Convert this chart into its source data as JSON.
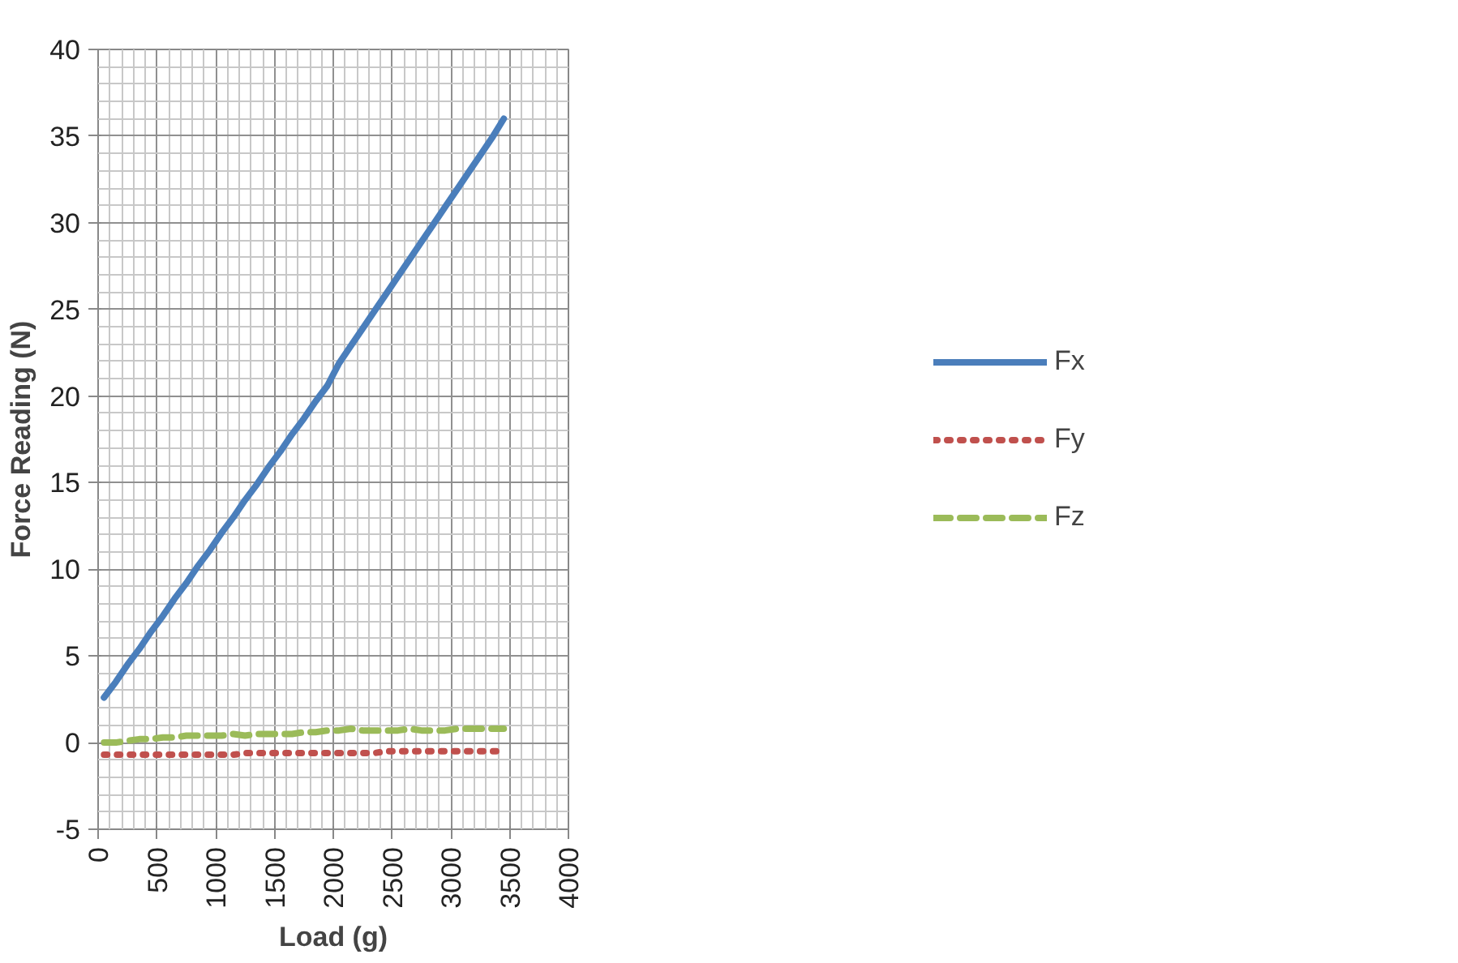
{
  "chart_data": {
    "type": "line",
    "xlabel": "Load (g)",
    "ylabel": "Force Reading (N)",
    "x": [
      50,
      150,
      250,
      350,
      450,
      550,
      650,
      750,
      850,
      950,
      1050,
      1150,
      1250,
      1350,
      1450,
      1550,
      1650,
      1750,
      1850,
      1950,
      2050,
      2150,
      2250,
      2350,
      2450,
      2550,
      2650,
      2750,
      2850,
      2950,
      3050,
      3150,
      3250,
      3350,
      3450
    ],
    "series": [
      {
        "name": "Fx",
        "color": "#4a7ebb",
        "line_style": "solid",
        "values": [
          2.6,
          3.5,
          4.5,
          5.4,
          6.4,
          7.3,
          8.3,
          9.2,
          10.2,
          11.1,
          12.1,
          13.0,
          14.0,
          14.9,
          15.9,
          16.8,
          17.8,
          18.7,
          19.7,
          20.6,
          21.9,
          22.9,
          23.9,
          24.9,
          25.9,
          26.9,
          27.9,
          28.9,
          29.9,
          30.9,
          31.9,
          32.9,
          33.9,
          34.9,
          36.0
        ]
      },
      {
        "name": "Fy",
        "color": "#c0504d",
        "line_style": "dotted",
        "values": [
          -0.7,
          -0.7,
          -0.7,
          -0.7,
          -0.7,
          -0.7,
          -0.7,
          -0.7,
          -0.7,
          -0.7,
          -0.7,
          -0.7,
          -0.6,
          -0.6,
          -0.6,
          -0.6,
          -0.6,
          -0.6,
          -0.6,
          -0.6,
          -0.6,
          -0.6,
          -0.6,
          -0.6,
          -0.5,
          -0.5,
          -0.5,
          -0.5,
          -0.5,
          -0.5,
          -0.5,
          -0.5,
          -0.5,
          -0.5,
          -0.5
        ]
      },
      {
        "name": "Fz",
        "color": "#9bbb59",
        "line_style": "dashed",
        "values": [
          0.0,
          0.0,
          0.1,
          0.2,
          0.2,
          0.3,
          0.3,
          0.4,
          0.4,
          0.4,
          0.4,
          0.5,
          0.4,
          0.5,
          0.5,
          0.5,
          0.5,
          0.6,
          0.6,
          0.7,
          0.7,
          0.8,
          0.7,
          0.7,
          0.7,
          0.7,
          0.8,
          0.7,
          0.7,
          0.7,
          0.8,
          0.8,
          0.8,
          0.8,
          0.8
        ]
      }
    ],
    "xlim": [
      0,
      4000
    ],
    "xticks": [
      0,
      500,
      1000,
      1500,
      2000,
      2500,
      3000,
      3500,
      4000
    ],
    "ylim": [
      -5,
      40
    ],
    "yticks": [
      -5,
      0,
      5,
      10,
      15,
      20,
      25,
      30,
      35,
      40
    ],
    "grid": true,
    "legend": "right",
    "marker": "none"
  }
}
